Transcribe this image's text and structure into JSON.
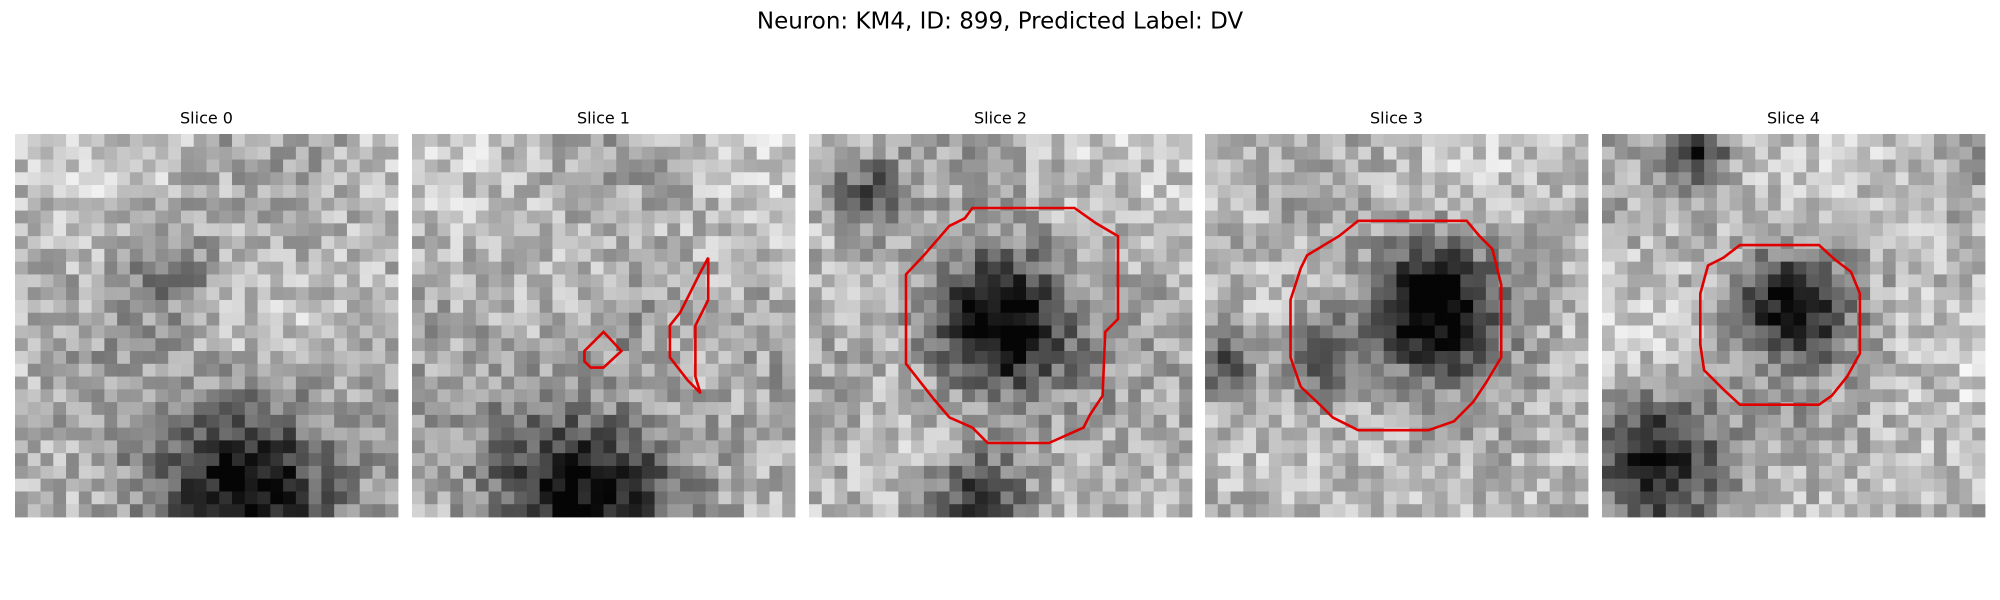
{
  "title": "Neuron: KM4, ID: 899, Predicted Label: DV",
  "panels": [
    {
      "title": "Slice 0"
    },
    {
      "title": "Slice 1"
    },
    {
      "title": "Slice 2"
    },
    {
      "title": "Slice 3"
    },
    {
      "title": "Slice 4"
    }
  ]
}
